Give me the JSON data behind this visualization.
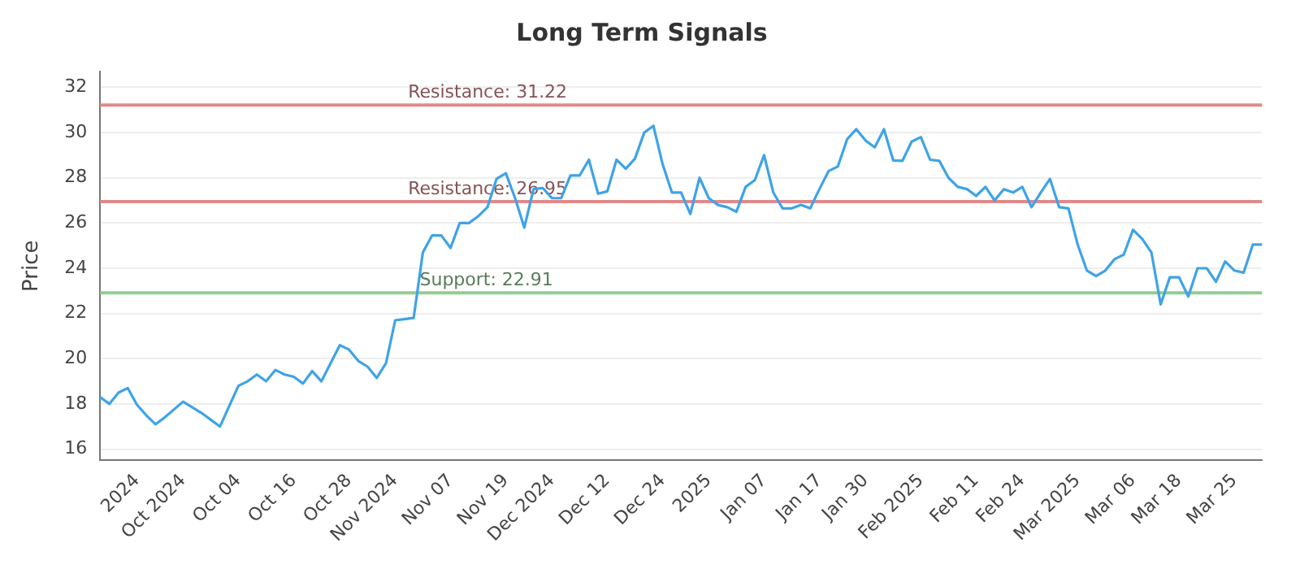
{
  "chart_data": {
    "type": "line",
    "title": "Long Term Signals",
    "ylabel": "Price",
    "categories": [
      null,
      null,
      null,
      null,
      "2024",
      null,
      null,
      null,
      null,
      "Oct 2024",
      null,
      null,
      null,
      null,
      null,
      "Oct 04",
      null,
      null,
      null,
      null,
      null,
      "Oct 16",
      null,
      null,
      null,
      null,
      null,
      "Oct 28",
      null,
      null,
      null,
      null,
      "Nov 2024",
      null,
      null,
      null,
      null,
      null,
      "Nov 07",
      null,
      null,
      null,
      null,
      null,
      "Nov 19",
      null,
      null,
      null,
      null,
      "Dec 2024",
      null,
      null,
      null,
      null,
      null,
      "Dec 12",
      null,
      null,
      null,
      null,
      null,
      "Dec 24",
      null,
      null,
      null,
      null,
      "2025",
      null,
      null,
      null,
      null,
      null,
      "Jan 07",
      null,
      null,
      null,
      null,
      null,
      "Jan 17",
      null,
      null,
      null,
      null,
      "Jan 30",
      null,
      null,
      null,
      null,
      null,
      "Feb 2025",
      null,
      null,
      null,
      null,
      null,
      "Feb 11",
      null,
      null,
      null,
      null,
      "Feb 24",
      null,
      null,
      null,
      null,
      null,
      "Mar 2025",
      null,
      null,
      null,
      null,
      null,
      "Mar 06",
      null,
      null,
      null,
      null,
      "Mar 18",
      null,
      null,
      null,
      null,
      null,
      "Mar 25",
      null,
      null,
      null
    ],
    "series": [
      {
        "color": "#3fa3e6",
        "values": [
          18.3,
          18.0,
          18.5,
          18.7,
          17.96,
          17.5,
          17.1,
          17.4,
          17.75,
          18.1,
          17.85,
          17.6,
          17.3,
          17.0,
          17.9,
          18.8,
          19.0,
          19.3,
          19.0,
          19.5,
          19.3,
          19.2,
          18.9,
          19.45,
          19.0,
          19.8,
          20.6,
          20.4,
          19.9,
          19.65,
          19.15,
          19.8,
          21.7,
          21.75,
          21.8,
          24.7,
          25.45,
          25.45,
          24.9,
          26.0,
          26.0,
          26.3,
          26.7,
          27.96,
          28.2,
          27.1,
          25.8,
          27.5,
          27.55,
          27.1,
          27.1,
          28.1,
          28.1,
          28.8,
          27.3,
          27.4,
          28.8,
          28.4,
          28.85,
          30.0,
          30.3,
          28.6,
          27.35,
          27.35,
          26.4,
          28.0,
          27.1,
          26.8,
          26.7,
          26.5,
          27.6,
          27.9,
          29.0,
          27.35,
          26.65,
          26.65,
          26.8,
          26.65,
          27.5,
          28.3,
          28.5,
          29.7,
          30.15,
          29.65,
          29.35,
          30.15,
          28.77,
          28.75,
          29.6,
          29.8,
          28.8,
          28.75,
          28.0,
          27.6,
          27.5,
          27.2,
          27.6,
          27.0,
          27.5,
          27.35,
          27.6,
          26.7,
          27.35,
          27.95,
          26.7,
          26.65,
          25.05,
          23.9,
          23.65,
          23.9,
          24.4,
          24.6,
          25.7,
          25.3,
          24.7,
          22.4,
          23.6,
          23.6,
          22.75,
          24.0,
          24.0,
          23.4,
          24.3,
          23.9,
          23.8,
          25.05,
          25.05
        ]
      }
    ],
    "ylim": [
      15.5,
      32.7
    ],
    "yticks": [
      16,
      18,
      20,
      22,
      24,
      26,
      28,
      30,
      32
    ],
    "grid": "y",
    "legend": false,
    "marker": "none",
    "line_style": "solid",
    "ref_lines": [
      {
        "axis": "y",
        "value": 31.22,
        "label": "Resistance: 31.22",
        "color": "#e08a8a"
      },
      {
        "axis": "y",
        "value": 26.95,
        "label": "Resistance: 26.95",
        "color": "#e08a8a"
      },
      {
        "axis": "y",
        "value": 22.91,
        "label": "Support: 22.91",
        "color": "#8fd08f"
      }
    ]
  }
}
